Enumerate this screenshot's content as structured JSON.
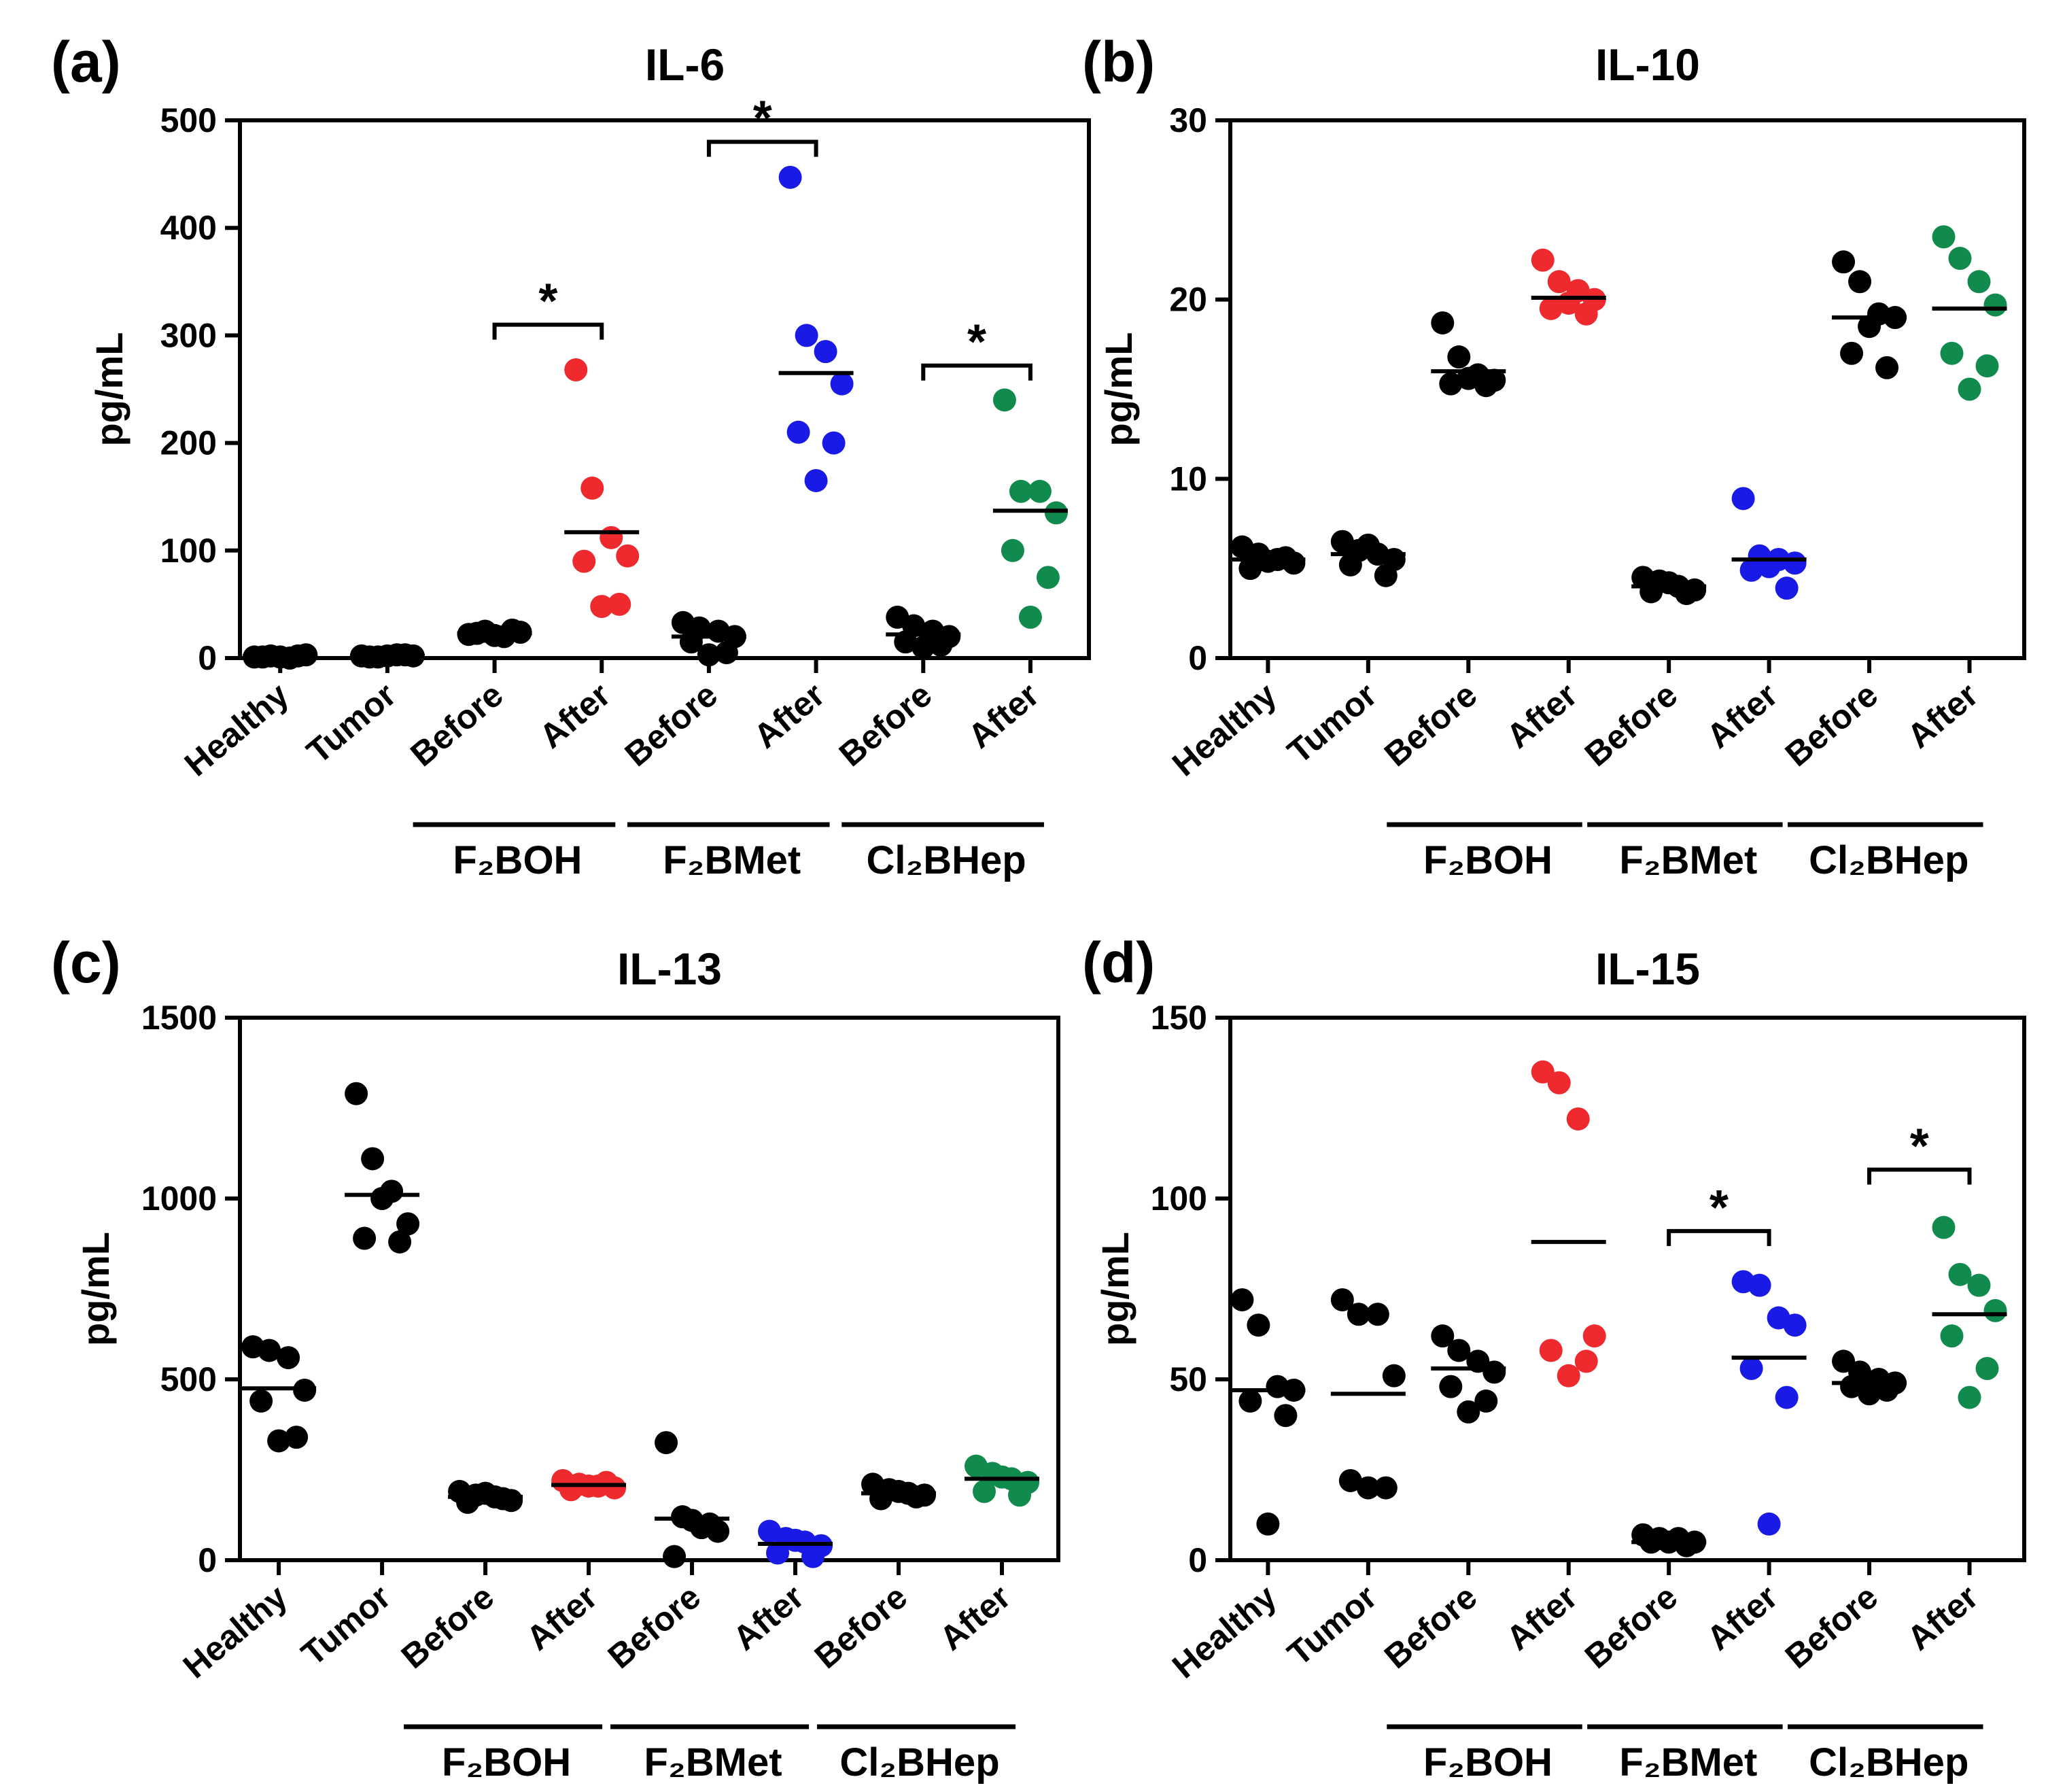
{
  "figure": {
    "colors": {
      "black": "#000000",
      "red": "#ee2a2f",
      "blue": "#1a1ae6",
      "green": "#118a4e"
    }
  },
  "chart_data": [
    {
      "type": "scatter",
      "panel_label": "(a)",
      "title": "IL-6",
      "xlabel": "",
      "ylabel": "pg/mL",
      "ylim": [
        0,
        500
      ],
      "yticks": [
        0,
        100,
        200,
        300,
        400,
        500
      ],
      "categories": [
        "Healthy",
        "Tumor",
        "Before",
        "After",
        "Before",
        "After",
        "Before",
        "After"
      ],
      "groups": [
        {
          "label": "F₂BOH",
          "categories": [
            2,
            3
          ]
        },
        {
          "label": "F₂BMet",
          "categories": [
            4,
            5
          ]
        },
        {
          "label": "Cl₂BHep",
          "categories": [
            6,
            7
          ]
        }
      ],
      "series": [
        {
          "name": "Healthy",
          "color": "black",
          "values": [
            1,
            2,
            0,
            3,
            1,
            2,
            1
          ],
          "mean": 2
        },
        {
          "name": "Tumor",
          "color": "black",
          "values": [
            2,
            1,
            3,
            2,
            1,
            3,
            2
          ],
          "mean": 2
        },
        {
          "name": "F2BOH Before",
          "color": "black",
          "values": [
            22,
            25,
            20,
            24,
            23,
            26,
            21
          ],
          "mean": 23
        },
        {
          "name": "F2BOH After",
          "color": "red",
          "values": [
            268,
            158,
            112,
            95,
            90,
            50,
            48
          ],
          "mean": 117
        },
        {
          "name": "F2BMet Before",
          "color": "black",
          "values": [
            33,
            28,
            25,
            20,
            15,
            5,
            3
          ],
          "mean": 20
        },
        {
          "name": "F2BMet After",
          "color": "blue",
          "values": [
            447,
            300,
            285,
            255,
            210,
            200,
            165
          ],
          "mean": 265
        },
        {
          "name": "Cl2BHep Before",
          "color": "black",
          "values": [
            38,
            30,
            25,
            20,
            15,
            12,
            10
          ],
          "mean": 22
        },
        {
          "name": "Cl2BHep After",
          "color": "green",
          "values": [
            240,
            155,
            155,
            135,
            100,
            75,
            38
          ],
          "mean": 137
        }
      ],
      "significance": [
        {
          "label": "*",
          "between": [
            2,
            3
          ],
          "y": 310
        },
        {
          "label": "*",
          "between": [
            4,
            5
          ],
          "y": 480
        },
        {
          "label": "*",
          "between": [
            6,
            7
          ],
          "y": 272
        }
      ]
    },
    {
      "type": "scatter",
      "panel_label": "(b)",
      "title": "IL-10",
      "xlabel": "",
      "ylabel": "pg/mL",
      "ylim": [
        0,
        30
      ],
      "yticks": [
        0,
        10,
        20,
        30
      ],
      "categories": [
        "Healthy",
        "Tumor",
        "Before",
        "After",
        "Before",
        "After",
        "Before",
        "After"
      ],
      "groups": [
        {
          "label": "F₂BOH",
          "categories": [
            2,
            3
          ]
        },
        {
          "label": "F₂BMet",
          "categories": [
            4,
            5
          ]
        },
        {
          "label": "Cl₂BHep",
          "categories": [
            6,
            7
          ]
        }
      ],
      "series": [
        {
          "name": "Healthy",
          "color": "black",
          "values": [
            6.2,
            5.8,
            5.5,
            5.3,
            5.0,
            5.6,
            5.4
          ],
          "mean": 5.5
        },
        {
          "name": "Tumor",
          "color": "black",
          "values": [
            6.5,
            6.0,
            5.8,
            5.5,
            5.2,
            4.6,
            6.3
          ],
          "mean": 5.8
        },
        {
          "name": "F2BOH Before",
          "color": "black",
          "values": [
            18.7,
            16.8,
            15.8,
            15.5,
            15.3,
            15.2,
            15.6
          ],
          "mean": 16.0
        },
        {
          "name": "F2BOH After",
          "color": "red",
          "values": [
            22.2,
            21.0,
            20.5,
            20.0,
            19.5,
            19.2,
            19.8
          ],
          "mean": 20.1
        },
        {
          "name": "F2BMet Before",
          "color": "black",
          "values": [
            4.5,
            4.3,
            4.0,
            3.8,
            3.7,
            3.6,
            4.2
          ],
          "mean": 4.0
        },
        {
          "name": "F2BMet After",
          "color": "blue",
          "values": [
            8.9,
            5.7,
            5.5,
            5.3,
            4.9,
            3.9,
            5.1
          ],
          "mean": 5.5
        },
        {
          "name": "Cl2BHep Before",
          "color": "black",
          "values": [
            22.1,
            21.0,
            19.2,
            19.0,
            17.0,
            16.2,
            18.5
          ],
          "mean": 19.0
        },
        {
          "name": "Cl2BHep After",
          "color": "green",
          "values": [
            23.5,
            22.3,
            21.0,
            19.7,
            17.0,
            16.3,
            15.0
          ],
          "mean": 19.5
        }
      ],
      "significance": []
    },
    {
      "type": "scatter",
      "panel_label": "(c)",
      "title": "IL-13",
      "xlabel": "",
      "ylabel": "pg/mL",
      "ylim": [
        0,
        1500
      ],
      "yticks": [
        0,
        500,
        1000,
        1500
      ],
      "categories": [
        "Healthy",
        "Tumor",
        "Before",
        "After",
        "Before",
        "After",
        "Before",
        "After"
      ],
      "groups": [
        {
          "label": "F₂BOH",
          "categories": [
            2,
            3
          ]
        },
        {
          "label": "F₂BMet",
          "categories": [
            4,
            5
          ]
        },
        {
          "label": "Cl₂BHep",
          "categories": [
            6,
            7
          ]
        }
      ],
      "series": [
        {
          "name": "Healthy",
          "color": "black",
          "values": [
            590,
            580,
            560,
            470,
            440,
            340,
            330
          ],
          "mean": 475
        },
        {
          "name": "Tumor",
          "color": "black",
          "values": [
            1290,
            1110,
            1020,
            930,
            890,
            880,
            1000
          ],
          "mean": 1010
        },
        {
          "name": "F2BOH Before",
          "color": "black",
          "values": [
            190,
            180,
            175,
            165,
            160,
            170,
            185
          ],
          "mean": 175
        },
        {
          "name": "F2BOH After",
          "color": "red",
          "values": [
            220,
            210,
            205,
            200,
            195,
            215,
            205
          ],
          "mean": 208
        },
        {
          "name": "F2BMet Before",
          "color": "black",
          "values": [
            325,
            120,
            90,
            80,
            10,
            100,
            110
          ],
          "mean": 115
        },
        {
          "name": "F2BMet After",
          "color": "blue",
          "values": [
            80,
            60,
            50,
            40,
            20,
            10,
            55
          ],
          "mean": 45
        },
        {
          "name": "Cl2BHep Before",
          "color": "black",
          "values": [
            210,
            195,
            185,
            180,
            170,
            175,
            190
          ],
          "mean": 185
        },
        {
          "name": "Cl2BHep After",
          "color": "green",
          "values": [
            260,
            240,
            225,
            215,
            190,
            180,
            230
          ],
          "mean": 225
        }
      ],
      "significance": []
    },
    {
      "type": "scatter",
      "panel_label": "(d)",
      "title": "IL-15",
      "xlabel": "",
      "ylabel": "pg/mL",
      "ylim": [
        0,
        150
      ],
      "yticks": [
        0,
        50,
        100,
        150
      ],
      "categories": [
        "Healthy",
        "Tumor",
        "Before",
        "After",
        "Before",
        "After",
        "Before",
        "After"
      ],
      "groups": [
        {
          "label": "F₂BOH",
          "categories": [
            2,
            3
          ]
        },
        {
          "label": "F₂BMet",
          "categories": [
            4,
            5
          ]
        },
        {
          "label": "Cl₂BHep",
          "categories": [
            6,
            7
          ]
        }
      ],
      "series": [
        {
          "name": "Healthy",
          "color": "black",
          "values": [
            72,
            65,
            48,
            47,
            44,
            40,
            10
          ],
          "mean": 47
        },
        {
          "name": "Tumor",
          "color": "black",
          "values": [
            72,
            68,
            68,
            51,
            22,
            20,
            20
          ],
          "mean": 46
        },
        {
          "name": "F2BOH Before",
          "color": "black",
          "values": [
            62,
            58,
            55,
            52,
            48,
            44,
            41
          ],
          "mean": 53
        },
        {
          "name": "F2BOH After",
          "color": "red",
          "values": [
            135,
            132,
            122,
            62,
            58,
            55,
            51
          ],
          "mean": 88
        },
        {
          "name": "F2BMet Before",
          "color": "black",
          "values": [
            7,
            6,
            6,
            5,
            5,
            4,
            5
          ],
          "mean": 5
        },
        {
          "name": "F2BMet After",
          "color": "blue",
          "values": [
            77,
            76,
            67,
            65,
            53,
            45,
            10
          ],
          "mean": 56
        },
        {
          "name": "Cl2BHep Before",
          "color": "black",
          "values": [
            55,
            52,
            50,
            49,
            48,
            47,
            46
          ],
          "mean": 49
        },
        {
          "name": "Cl2BHep After",
          "color": "green",
          "values": [
            92,
            79,
            76,
            69,
            62,
            53,
            45
          ],
          "mean": 68
        }
      ],
      "significance": [
        {
          "label": "*",
          "between": [
            4,
            5
          ],
          "y": 91
        },
        {
          "label": "*",
          "between": [
            6,
            7
          ],
          "y": 108
        }
      ]
    }
  ]
}
